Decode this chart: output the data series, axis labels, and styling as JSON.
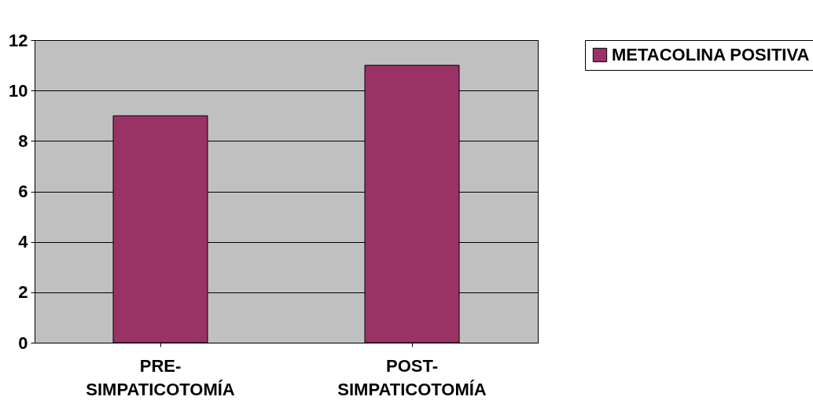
{
  "chart_data": {
    "type": "bar",
    "categories": [
      "PRE-SIMPATICOTOMÍA",
      "POST-SIMPATICOTOMÍA"
    ],
    "series": [
      {
        "name": "METACOLINA POSITIVA",
        "color": "#993366",
        "values": [
          9,
          11
        ]
      }
    ],
    "ylim": [
      0,
      12
    ],
    "yticks": [
      0,
      2,
      4,
      6,
      8,
      10,
      12
    ],
    "grid": "y",
    "legend": "right"
  }
}
